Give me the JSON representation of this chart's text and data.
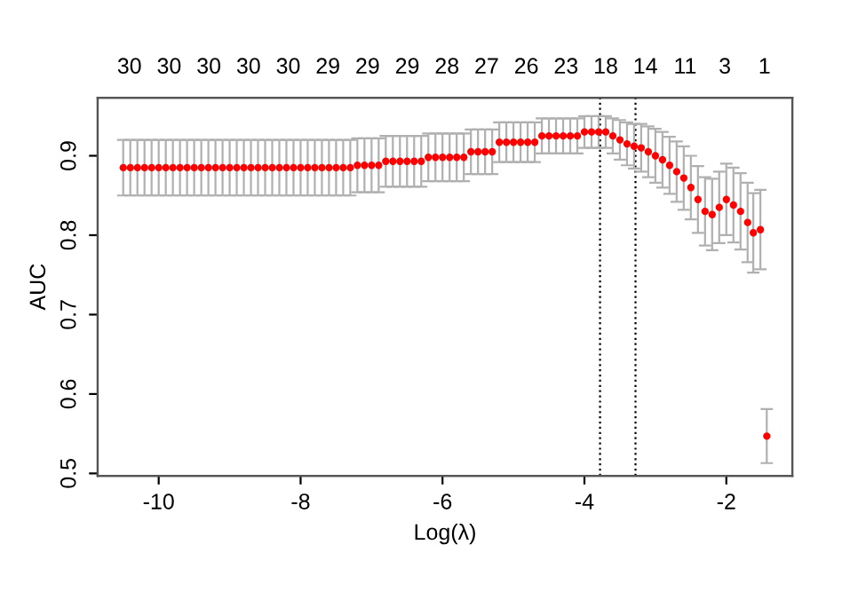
{
  "chart_data": {
    "type": "scatter",
    "xlabel": "Log(λ)",
    "ylabel": "AUC",
    "x": [
      -10.5,
      -10.4,
      -10.3,
      -10.2,
      -10.1,
      -10.0,
      -9.9,
      -9.8,
      -9.7,
      -9.6,
      -9.5,
      -9.4,
      -9.3,
      -9.2,
      -9.1,
      -9.0,
      -8.9,
      -8.8,
      -8.7,
      -8.6,
      -8.5,
      -8.4,
      -8.3,
      -8.2,
      -8.1,
      -8.0,
      -7.9,
      -7.8,
      -7.7,
      -7.6,
      -7.5,
      -7.4,
      -7.3,
      -7.2,
      -7.1,
      -7.0,
      -6.9,
      -6.8,
      -6.7,
      -6.6,
      -6.5,
      -6.4,
      -6.3,
      -6.2,
      -6.1,
      -6.0,
      -5.9,
      -5.8,
      -5.7,
      -5.6,
      -5.5,
      -5.4,
      -5.3,
      -5.2,
      -5.1,
      -5.0,
      -4.9,
      -4.8,
      -4.7,
      -4.6,
      -4.5,
      -4.4,
      -4.3,
      -4.2,
      -4.1,
      -4.0,
      -3.9,
      -3.8,
      -3.7,
      -3.6,
      -3.5,
      -3.4,
      -3.3,
      -3.2,
      -3.1,
      -3.0,
      -2.9,
      -2.8,
      -2.7,
      -2.6,
      -2.5,
      -2.4,
      -2.3,
      -2.2,
      -2.1,
      -2.0,
      -1.9,
      -1.8,
      -1.7,
      -1.62,
      -1.52,
      -1.43
    ],
    "series": [
      {
        "color": "#ff0000",
        "values": [
          0.885,
          0.885,
          0.885,
          0.885,
          0.885,
          0.885,
          0.885,
          0.885,
          0.885,
          0.885,
          0.885,
          0.885,
          0.885,
          0.885,
          0.885,
          0.885,
          0.885,
          0.885,
          0.885,
          0.885,
          0.885,
          0.885,
          0.885,
          0.885,
          0.885,
          0.885,
          0.885,
          0.885,
          0.885,
          0.885,
          0.885,
          0.885,
          0.885,
          0.888,
          0.888,
          0.888,
          0.888,
          0.893,
          0.893,
          0.893,
          0.893,
          0.893,
          0.893,
          0.898,
          0.898,
          0.898,
          0.898,
          0.898,
          0.898,
          0.905,
          0.905,
          0.905,
          0.905,
          0.917,
          0.917,
          0.917,
          0.917,
          0.917,
          0.917,
          0.925,
          0.925,
          0.925,
          0.925,
          0.925,
          0.925,
          0.93,
          0.93,
          0.93,
          0.93,
          0.925,
          0.92,
          0.915,
          0.912,
          0.91,
          0.905,
          0.9,
          0.895,
          0.888,
          0.88,
          0.872,
          0.86,
          0.845,
          0.83,
          0.826,
          0.835,
          0.845,
          0.838,
          0.83,
          0.816,
          0.803,
          0.807,
          0.547
        ],
        "errors": [
          0.035,
          0.035,
          0.035,
          0.035,
          0.035,
          0.035,
          0.035,
          0.035,
          0.035,
          0.035,
          0.035,
          0.035,
          0.035,
          0.035,
          0.035,
          0.035,
          0.035,
          0.035,
          0.035,
          0.035,
          0.035,
          0.035,
          0.035,
          0.035,
          0.035,
          0.035,
          0.035,
          0.035,
          0.035,
          0.035,
          0.035,
          0.035,
          0.035,
          0.034,
          0.034,
          0.034,
          0.034,
          0.032,
          0.032,
          0.032,
          0.032,
          0.032,
          0.032,
          0.03,
          0.03,
          0.03,
          0.03,
          0.03,
          0.03,
          0.028,
          0.028,
          0.028,
          0.028,
          0.025,
          0.025,
          0.025,
          0.025,
          0.025,
          0.025,
          0.022,
          0.022,
          0.022,
          0.022,
          0.022,
          0.022,
          0.02,
          0.02,
          0.02,
          0.02,
          0.022,
          0.025,
          0.027,
          0.028,
          0.03,
          0.032,
          0.034,
          0.035,
          0.036,
          0.038,
          0.04,
          0.04,
          0.042,
          0.043,
          0.045,
          0.045,
          0.045,
          0.047,
          0.048,
          0.05,
          0.05,
          0.05,
          0.034
        ]
      }
    ],
    "xlim": [
      -10.86,
      -1.07
    ],
    "ylim": [
      0.497,
      0.973
    ],
    "xticks": [
      -10,
      -8,
      -6,
      -4,
      -2
    ],
    "yticks": [
      0.5,
      0.6,
      0.7,
      0.8,
      0.9
    ],
    "annotations": [
      "30",
      "30",
      "30",
      "30",
      "30",
      "29",
      "29",
      "29",
      "28",
      "27",
      "26",
      "23",
      "18",
      "14",
      "11",
      "3",
      "1"
    ],
    "ref_lines": [
      {
        "axis": "x",
        "value": -3.78,
        "line_style": "dotted",
        "color": "#000000"
      },
      {
        "axis": "x",
        "value": -3.28,
        "line_style": "dotted",
        "color": "#000000"
      }
    ],
    "marker": "circle",
    "grid": false,
    "legend": false
  }
}
